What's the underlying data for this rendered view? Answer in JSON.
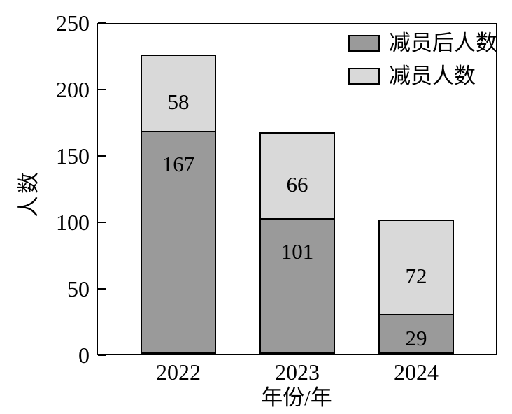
{
  "chart_data": {
    "type": "bar",
    "stacked": true,
    "categories": [
      "2022",
      "2023",
      "2024"
    ],
    "series": [
      {
        "name": "减员后人数",
        "values": [
          167,
          101,
          29
        ],
        "color": "#9a9a9a"
      },
      {
        "name": "减员人数",
        "values": [
          58,
          66,
          72
        ],
        "color": "#d9d9d9"
      }
    ],
    "totals": [
      225,
      167,
      101
    ],
    "xlabel": "年份/年",
    "ylabel": "人数",
    "ylim": [
      0,
      250
    ],
    "yticks": [
      0,
      50,
      100,
      150,
      200,
      250
    ],
    "grid": false,
    "bar_labels_shown": true,
    "legend_position": "top-right-inside",
    "frame_color": "#000000",
    "label_color": "#000000",
    "background_color": "#ffffff"
  }
}
